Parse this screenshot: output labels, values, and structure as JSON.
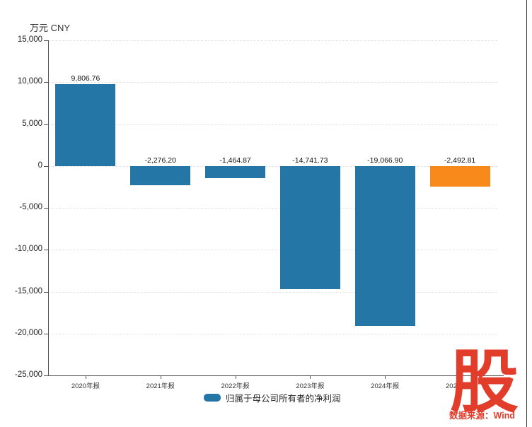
{
  "unit_label": "万元 CNY",
  "legend": {
    "label": "归属于母公司所有者的净利润",
    "swatch_color": "#2376A6"
  },
  "watermark": {
    "logo_char": "股",
    "source_text": "数据来源：Wind",
    "color": "#E23C2B"
  },
  "colors": {
    "bar": "#2376A6",
    "highlight": "#F78A1A",
    "grid": "#e3e3e3",
    "axis": "#555555",
    "text": "#333333",
    "accent_red": "#E23C2B"
  },
  "chart_data": {
    "type": "bar",
    "title": "",
    "ylabel": "万元 CNY",
    "series_name": "归属于母公司所有者的净利润",
    "categories": [
      "2020年报",
      "2021年报",
      "2022年报",
      "2023年报",
      "2024年报",
      "2025中报"
    ],
    "values": [
      9806.76,
      -2276.2,
      -1464.87,
      -14741.73,
      -19066.9,
      -2492.81
    ],
    "value_labels": [
      "9,806.76",
      "-2,276.20",
      "-1,464.87",
      "-14,741.73",
      "-19,066.90",
      "-2,492.81"
    ],
    "highlight_index": 5,
    "bar_color": "#2376A6",
    "highlight_color": "#F78A1A",
    "ylim": [
      -25000,
      15000
    ],
    "ytick_step": 5000,
    "ytick_labels": [
      "15,000",
      "10,000",
      "5,000",
      "0",
      "-5,000",
      "-10,000",
      "-15,000",
      "-20,000",
      "-25,000"
    ],
    "grid": "dashed-horizontal",
    "legend_position": "bottom"
  }
}
